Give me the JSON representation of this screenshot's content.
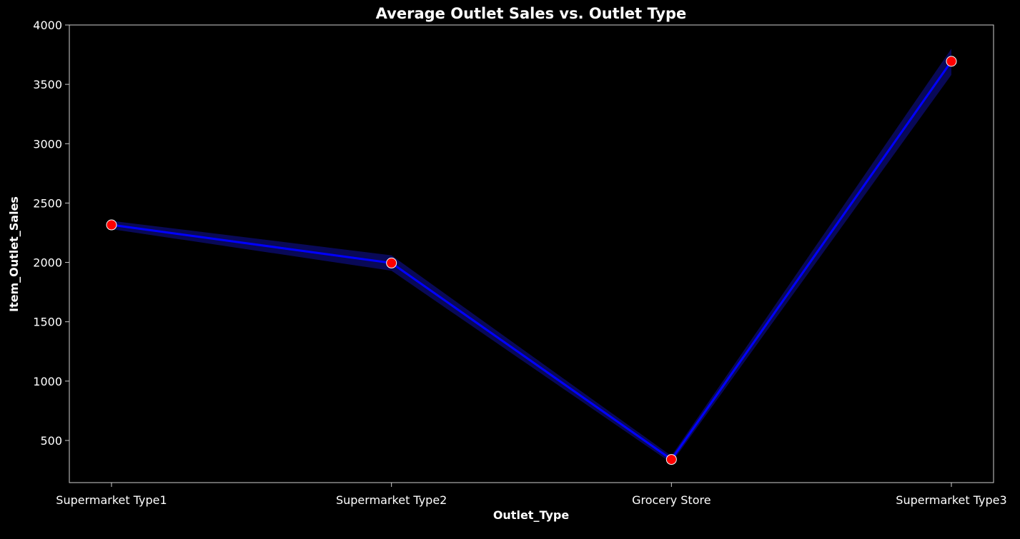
{
  "chart_data": {
    "type": "line",
    "title": "Average Outlet Sales vs. Outlet Type",
    "xlabel": "Outlet_Type",
    "ylabel": "Item_Outlet_Sales",
    "categories": [
      "Supermarket Type1",
      "Supermarket Type2",
      "Grocery Store",
      "Supermarket Type3"
    ],
    "series": [
      {
        "values": [
          2316,
          1995,
          340,
          3694
        ],
        "ci_lower": [
          2280,
          1930,
          310,
          3580
        ],
        "ci_upper": [
          2350,
          2060,
          370,
          3800
        ]
      }
    ],
    "y_ticks": [
      500,
      1000,
      1500,
      2000,
      2500,
      3000,
      3500,
      4000
    ],
    "y_tick_labels": [
      "500",
      "1000",
      "1500",
      "2000",
      "2500",
      "3000",
      "3500",
      "4000"
    ],
    "ylim": [
      145,
      4000
    ],
    "grid": false,
    "colors": {
      "background": "#000000",
      "line": "#0000ff",
      "ci_band": "#0a0a66",
      "marker_fill": "#ff0000",
      "marker_edge": "#ffffff",
      "text": "#ffffff",
      "axes": "#cccccc"
    }
  }
}
